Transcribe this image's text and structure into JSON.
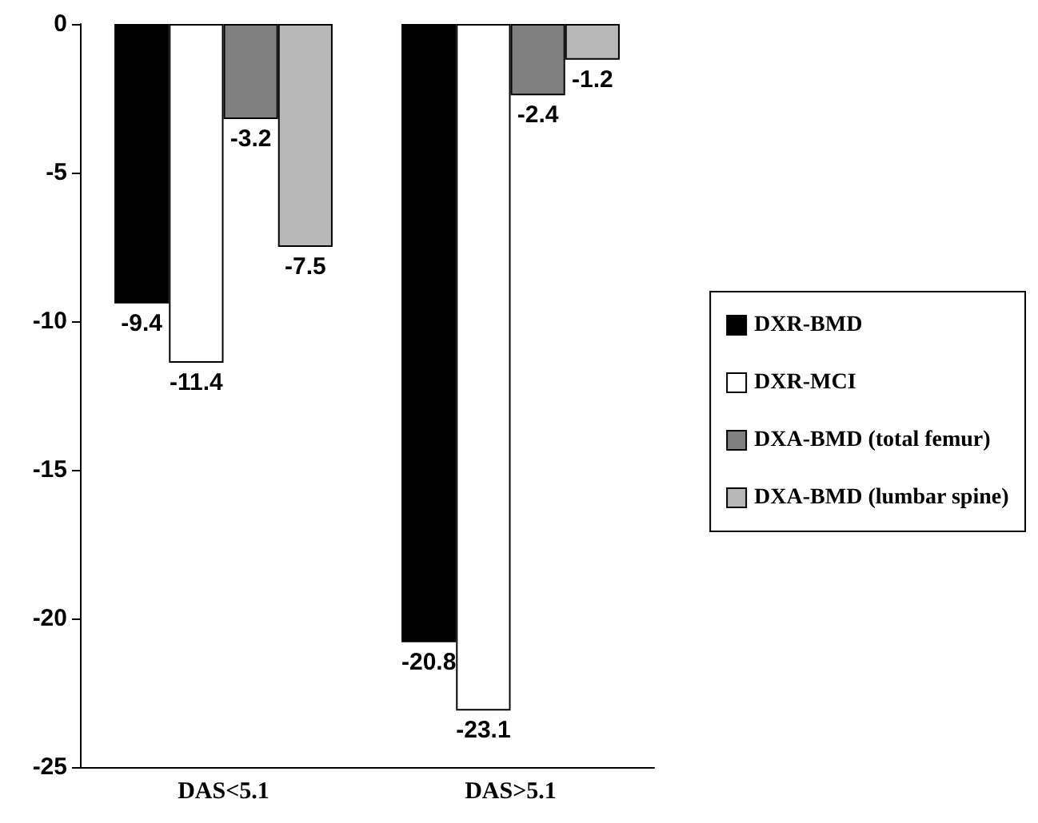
{
  "chart_data": {
    "type": "bar",
    "categories": [
      "DAS<5.1",
      "DAS>5.1"
    ],
    "series": [
      {
        "name": "DXR-BMD",
        "color": "#000000",
        "values": [
          -9.4,
          -20.8
        ]
      },
      {
        "name": "DXR-MCI",
        "color": "#ffffff",
        "values": [
          -11.4,
          -23.1
        ]
      },
      {
        "name": "DXA-BMD (total femur)",
        "color": "#808080",
        "values": [
          -3.2,
          -2.4
        ]
      },
      {
        "name": "DXA-BMD (lumbar spine)",
        "color": "#b8b8b8",
        "values": [
          -7.5,
          -1.2
        ]
      }
    ],
    "ylim": [
      -25,
      0
    ],
    "yticks": [
      -25,
      -20,
      -15,
      -10,
      -5,
      0
    ],
    "grid": false,
    "legend": "right",
    "data_labels": true
  }
}
